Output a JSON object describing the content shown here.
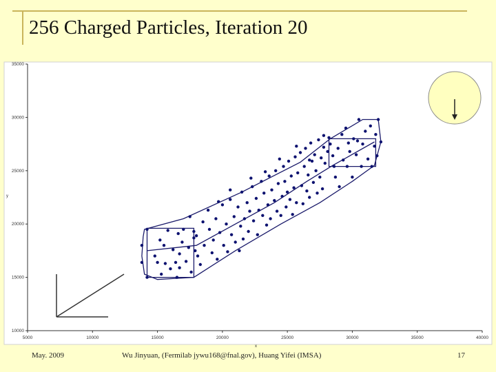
{
  "slide": {
    "title": "256 Charged Particles, Iteration 20",
    "footer_date": "May. 2009",
    "footer_authors": "Wu Jinyuan, (Fermilab jywu168@fnal.gov), Huang Yifei (IMSA)",
    "page_number": "17"
  },
  "colors": {
    "background": "#ffffcc",
    "plot_area": "#ffffff",
    "points": "#0d1270",
    "lines": "#1a1a6a",
    "inset": "#ffffc0"
  },
  "chart_data": {
    "type": "scatter",
    "title": "",
    "xlabel": "x",
    "ylabel": "y",
    "xlim": [
      5000,
      40000
    ],
    "ylim": [
      10000,
      35000
    ],
    "x_ticks": [
      "5000",
      "10000",
      "15000",
      "20000",
      "25000",
      "30000",
      "35000",
      "40000"
    ],
    "y_ticks": [
      "10000",
      "15000",
      "20000",
      "25000",
      "30000",
      "35000"
    ],
    "grid": false,
    "legend": "none",
    "outline": [
      [
        14000,
        19500
      ],
      [
        17000,
        20500
      ],
      [
        21500,
        23000
      ],
      [
        26000,
        25800
      ],
      [
        28300,
        28000
      ],
      [
        30800,
        29800
      ],
      [
        32000,
        29800
      ],
      [
        32200,
        27700
      ],
      [
        31700,
        25500
      ],
      [
        30000,
        24000
      ],
      [
        27500,
        22000
      ],
      [
        24500,
        20000
      ],
      [
        21000,
        17500
      ],
      [
        17800,
        15000
      ],
      [
        15000,
        14800
      ],
      [
        14000,
        15300
      ],
      [
        13800,
        17000
      ],
      [
        13900,
        18800
      ]
    ],
    "box_lower_left": [
      [
        14200,
        19600
      ],
      [
        17800,
        19600
      ],
      [
        17800,
        15000
      ],
      [
        14200,
        15000
      ]
    ],
    "box_upper_right": [
      [
        28200,
        28000
      ],
      [
        31800,
        28000
      ],
      [
        31800,
        25400
      ],
      [
        28200,
        25400
      ]
    ],
    "center_line": [
      [
        14200,
        17500
      ],
      [
        18000,
        18000
      ],
      [
        21000,
        20000
      ],
      [
        24000,
        22000
      ],
      [
        26500,
        24000
      ],
      [
        28500,
        25500
      ],
      [
        31700,
        27700
      ]
    ],
    "points": [
      [
        13800,
        18000
      ],
      [
        13800,
        16400
      ],
      [
        14200,
        19500
      ],
      [
        14200,
        15000
      ],
      [
        14800,
        17000
      ],
      [
        15000,
        16400
      ],
      [
        15200,
        18500
      ],
      [
        15500,
        18000
      ],
      [
        15600,
        16300
      ],
      [
        15800,
        19400
      ],
      [
        16000,
        15800
      ],
      [
        16200,
        17600
      ],
      [
        16400,
        16400
      ],
      [
        16500,
        15000
      ],
      [
        16700,
        17200
      ],
      [
        16900,
        18300
      ],
      [
        17000,
        19500
      ],
      [
        17200,
        16500
      ],
      [
        17400,
        17800
      ],
      [
        17600,
        15500
      ],
      [
        17800,
        18700
      ],
      [
        17900,
        17500
      ],
      [
        16600,
        19100
      ],
      [
        15300,
        15300
      ],
      [
        16700,
        15900
      ],
      [
        17500,
        20700
      ],
      [
        17800,
        19300
      ],
      [
        18000,
        18900
      ],
      [
        18100,
        17000
      ],
      [
        18300,
        16200
      ],
      [
        18500,
        20200
      ],
      [
        18600,
        18000
      ],
      [
        18900,
        21300
      ],
      [
        19000,
        19500
      ],
      [
        19200,
        17300
      ],
      [
        19300,
        18500
      ],
      [
        19500,
        20500
      ],
      [
        19600,
        16700
      ],
      [
        19800,
        19200
      ],
      [
        20000,
        21800
      ],
      [
        20100,
        18000
      ],
      [
        20300,
        20000
      ],
      [
        20400,
        17400
      ],
      [
        20600,
        22300
      ],
      [
        20700,
        19000
      ],
      [
        20900,
        20700
      ],
      [
        21000,
        18300
      ],
      [
        21200,
        21600
      ],
      [
        21400,
        19800
      ],
      [
        21500,
        23000
      ],
      [
        21600,
        18600
      ],
      [
        21700,
        20500
      ],
      [
        21900,
        22000
      ],
      [
        22000,
        19300
      ],
      [
        22100,
        21200
      ],
      [
        22300,
        23500
      ],
      [
        22400,
        20300
      ],
      [
        22600,
        22400
      ],
      [
        22700,
        19000
      ],
      [
        22800,
        21300
      ],
      [
        23000,
        24000
      ],
      [
        23100,
        20800
      ],
      [
        23200,
        22900
      ],
      [
        23400,
        19900
      ],
      [
        23500,
        21800
      ],
      [
        23600,
        24500
      ],
      [
        23700,
        20500
      ],
      [
        23800,
        23200
      ],
      [
        24000,
        22200
      ],
      [
        24100,
        25000
      ],
      [
        24200,
        21200
      ],
      [
        24300,
        23800
      ],
      [
        24500,
        20800
      ],
      [
        24600,
        22600
      ],
      [
        24700,
        25400
      ],
      [
        24800,
        24000
      ],
      [
        24900,
        21600
      ],
      [
        25000,
        23000
      ],
      [
        25100,
        25900
      ],
      [
        25200,
        22300
      ],
      [
        25300,
        24500
      ],
      [
        25400,
        20900
      ],
      [
        25500,
        23400
      ],
      [
        25600,
        26300
      ],
      [
        25700,
        22000
      ],
      [
        25800,
        24800
      ],
      [
        26000,
        26700
      ],
      [
        26100,
        23600
      ],
      [
        26200,
        21900
      ],
      [
        26300,
        25400
      ],
      [
        26400,
        27100
      ],
      [
        26500,
        23100
      ],
      [
        26600,
        24600
      ],
      [
        26700,
        22500
      ],
      [
        26800,
        27600
      ],
      [
        26900,
        25900
      ],
      [
        27000,
        23900
      ],
      [
        27100,
        26500
      ],
      [
        27200,
        25000
      ],
      [
        27300,
        22900
      ],
      [
        27400,
        27900
      ],
      [
        27500,
        24400
      ],
      [
        27600,
        26200
      ],
      [
        27700,
        23300
      ],
      [
        27800,
        28300
      ],
      [
        27900,
        25700
      ],
      [
        28200,
        28100
      ],
      [
        28300,
        27500
      ],
      [
        28500,
        26400
      ],
      [
        28600,
        25400
      ],
      [
        28700,
        24400
      ],
      [
        28900,
        27100
      ],
      [
        29000,
        23500
      ],
      [
        29200,
        28400
      ],
      [
        29300,
        26000
      ],
      [
        29500,
        29000
      ],
      [
        29600,
        25400
      ],
      [
        29700,
        27600
      ],
      [
        30000,
        24400
      ],
      [
        30100,
        28000
      ],
      [
        30300,
        26500
      ],
      [
        30500,
        29800
      ],
      [
        30700,
        25400
      ],
      [
        30800,
        27500
      ],
      [
        31000,
        28700
      ],
      [
        31200,
        26100
      ],
      [
        31400,
        29200
      ],
      [
        31500,
        25400
      ],
      [
        31700,
        27300
      ],
      [
        31800,
        28400
      ],
      [
        32000,
        29800
      ],
      [
        32200,
        27700
      ],
      [
        31900,
        26400
      ],
      [
        19700,
        22100
      ],
      [
        20600,
        23200
      ],
      [
        21300,
        17500
      ],
      [
        22200,
        24300
      ],
      [
        23300,
        24900
      ],
      [
        24400,
        26100
      ],
      [
        25700,
        27300
      ],
      [
        26700,
        26000
      ],
      [
        27800,
        27200
      ],
      [
        28100,
        26800
      ],
      [
        29800,
        26800
      ],
      [
        30400,
        27800
      ]
    ]
  }
}
